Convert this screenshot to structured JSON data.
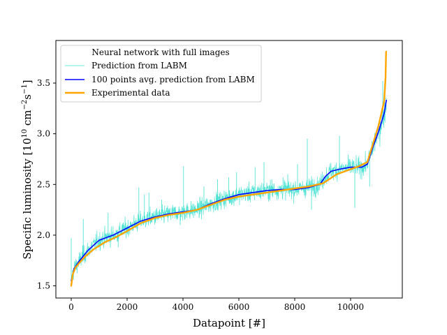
{
  "chart_data": {
    "type": "line",
    "title": "",
    "xlabel": "Datapoint [#]",
    "ylabel_main": "Specific luminosity [10",
    "ylabel_sup1": "10",
    "ylabel_mid": " cm",
    "ylabel_sup2": "−2",
    "ylabel_mid2": "s",
    "ylabel_sup3": "−1",
    "ylabel_end": "]",
    "xlim": [
      -550,
      11850
    ],
    "ylim": [
      1.38,
      3.92
    ],
    "xticks": [
      0,
      2000,
      4000,
      6000,
      8000,
      10000
    ],
    "xtick_labels": [
      "0",
      "2000",
      "4000",
      "6000",
      "8000",
      "10000"
    ],
    "yticks": [
      1.5,
      2.0,
      2.5,
      3.0,
      3.5
    ],
    "ytick_labels": [
      "1.5",
      "2.0",
      "2.5",
      "3.0",
      "3.5"
    ],
    "grid": false,
    "legend": {
      "placement": "top-left",
      "title": "Neural network with full images",
      "entries": [
        {
          "label": "Prediction from LABM",
          "color": "#40e0d0"
        },
        {
          "label": "100 points avg. prediction from LABM",
          "color": "#0000ff"
        },
        {
          "label": "Experimental data",
          "color": "#ffa500"
        }
      ]
    },
    "series": [
      {
        "name": "Prediction from LABM",
        "color": "#40e0d0",
        "noise_std": 0.045,
        "spikes": [
          {
            "x": 0,
            "y": 1.97
          },
          {
            "x": 410,
            "y": 1.9
          },
          {
            "x": 430,
            "y": 2.16
          },
          {
            "x": 1320,
            "y": 2.22
          },
          {
            "x": 1680,
            "y": 1.88
          },
          {
            "x": 2420,
            "y": 2.47
          },
          {
            "x": 2620,
            "y": 2.4
          },
          {
            "x": 2780,
            "y": 2.42
          },
          {
            "x": 3240,
            "y": 2.35
          },
          {
            "x": 3900,
            "y": 2.1
          },
          {
            "x": 4020,
            "y": 2.68
          },
          {
            "x": 4750,
            "y": 2.48
          },
          {
            "x": 5240,
            "y": 2.55
          },
          {
            "x": 5640,
            "y": 2.57
          },
          {
            "x": 5920,
            "y": 2.62
          },
          {
            "x": 6580,
            "y": 2.67
          },
          {
            "x": 6900,
            "y": 2.72
          },
          {
            "x": 7180,
            "y": 2.55
          },
          {
            "x": 7580,
            "y": 2.57
          },
          {
            "x": 7750,
            "y": 2.6
          },
          {
            "x": 8100,
            "y": 2.7
          },
          {
            "x": 8450,
            "y": 2.95
          },
          {
            "x": 8600,
            "y": 2.25
          },
          {
            "x": 9050,
            "y": 2.52
          },
          {
            "x": 9600,
            "y": 2.98
          },
          {
            "x": 10150,
            "y": 2.27
          },
          {
            "x": 10680,
            "y": 2.48
          },
          {
            "x": 10750,
            "y": 2.82
          },
          {
            "x": 11150,
            "y": 3.52
          }
        ]
      },
      {
        "name": "100 points avg. prediction from LABM",
        "color": "#0000ff",
        "x": [
          0,
          100,
          300,
          600,
          1000,
          1500,
          2000,
          2500,
          3000,
          3500,
          4000,
          4500,
          5000,
          5500,
          6000,
          6500,
          7000,
          7500,
          8000,
          8500,
          8900,
          9100,
          9300,
          9600,
          10000,
          10400,
          10600,
          10800,
          11000,
          11200,
          11280
        ],
        "y": [
          1.55,
          1.67,
          1.75,
          1.85,
          1.95,
          2.0,
          2.07,
          2.14,
          2.18,
          2.21,
          2.23,
          2.25,
          2.31,
          2.36,
          2.4,
          2.42,
          2.44,
          2.45,
          2.45,
          2.47,
          2.5,
          2.58,
          2.63,
          2.65,
          2.67,
          2.67,
          2.7,
          2.87,
          3.02,
          3.2,
          3.33
        ]
      },
      {
        "name": "Experimental data",
        "color": "#ffa500",
        "x": [
          0,
          50,
          150,
          300,
          500,
          800,
          1200,
          1600,
          2000,
          2500,
          3000,
          3500,
          4000,
          4500,
          5000,
          5500,
          6000,
          6500,
          7000,
          7500,
          8000,
          8500,
          9000,
          9500,
          10000,
          10300,
          10600,
          10800,
          11000,
          11100,
          11200,
          11250,
          11270
        ],
        "y": [
          1.5,
          1.61,
          1.68,
          1.73,
          1.79,
          1.86,
          1.93,
          1.98,
          2.04,
          2.12,
          2.17,
          2.2,
          2.22,
          2.25,
          2.3,
          2.35,
          2.38,
          2.4,
          2.42,
          2.44,
          2.46,
          2.48,
          2.51,
          2.6,
          2.65,
          2.68,
          2.72,
          2.9,
          3.08,
          3.2,
          3.32,
          3.55,
          3.81
        ]
      }
    ]
  }
}
